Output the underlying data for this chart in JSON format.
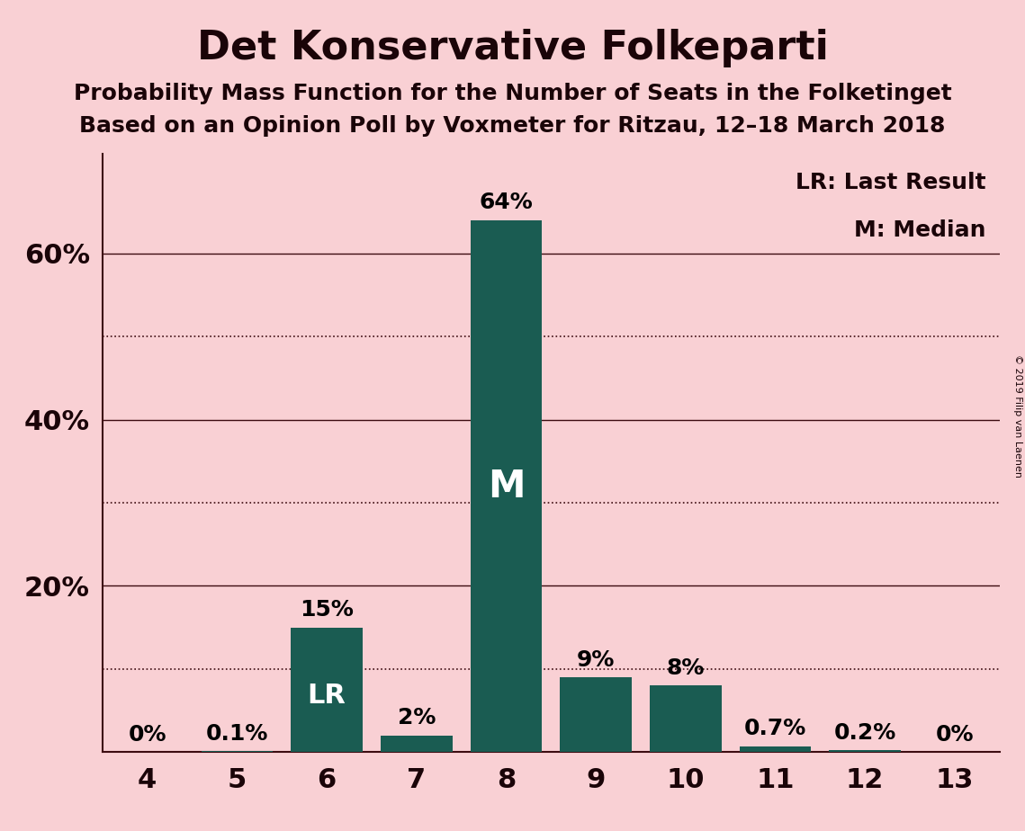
{
  "title": "Det Konservative Folkeparti",
  "subtitle1": "Probability Mass Function for the Number of Seats in the Folketinget",
  "subtitle2": "Based on an Opinion Poll by Voxmeter for Ritzau, 12–18 March 2018",
  "copyright": "© 2019 Filip van Laenen",
  "categories": [
    4,
    5,
    6,
    7,
    8,
    9,
    10,
    11,
    12,
    13
  ],
  "values": [
    0.0,
    0.1,
    15.0,
    2.0,
    64.0,
    9.0,
    8.0,
    0.7,
    0.2,
    0.0
  ],
  "labels": [
    "0%",
    "0.1%",
    "15%",
    "2%",
    "64%",
    "9%",
    "8%",
    "0.7%",
    "0.2%",
    "0%"
  ],
  "bar_color": "#1a5c52",
  "background_color": "#f9d0d4",
  "lr_bar": 6,
  "median_bar": 8,
  "legend_lr": "LR: Last Result",
  "legend_m": "M: Median",
  "solid_lines": [
    20,
    40,
    60
  ],
  "dotted_lines": [
    10,
    30,
    50
  ],
  "ytick_positions": [
    20,
    40,
    60
  ],
  "ytick_labels": [
    "20%",
    "40%",
    "60%"
  ],
  "ylim": [
    0,
    72
  ],
  "title_fontsize": 32,
  "subtitle_fontsize": 18,
  "bar_label_fontsize": 18,
  "axis_label_fontsize": 22,
  "legend_fontsize": 18,
  "inbar_fontsize_lr": 22,
  "inbar_fontsize_m": 30
}
